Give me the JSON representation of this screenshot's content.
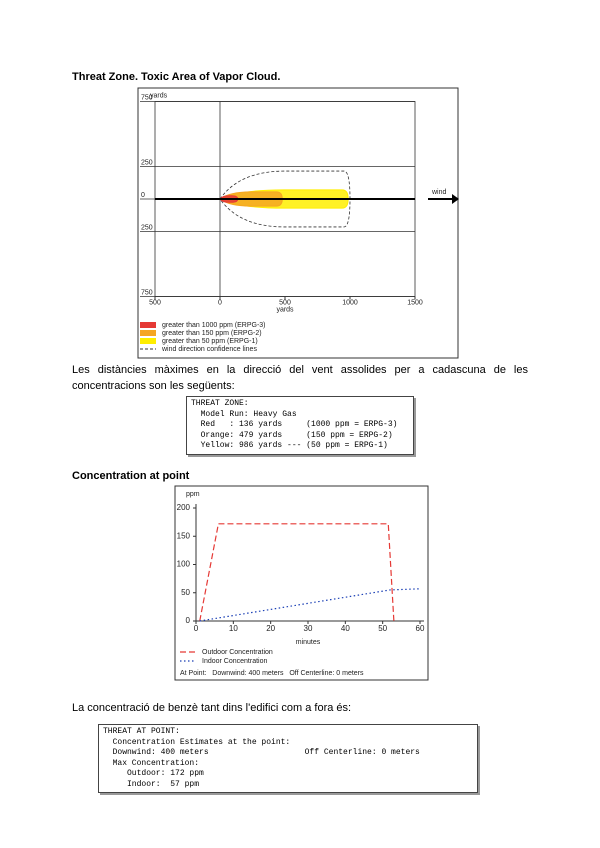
{
  "heading_1": "Threat Zone. Toxic Area of Vapor Cloud.",
  "paragraph_1": "Les distàncies màximes en la direcció del vent assolides per a cadascuna de les concentracions son les següents:",
  "box_1": [
    "THREAT ZONE:",
    "  Model Run: Heavy Gas",
    "  Red   : 136 yards     (1000 ppm = ERPG-3)",
    "  Orange: 479 yards     (150 ppm = ERPG-2)",
    "  Yellow: 986 yards --- (50 ppm = ERPG-1)"
  ],
  "heading_2": "Concentration at point",
  "paragraph_2": "La concentració de benzè tant dins l'edifici com a fora és:",
  "box_2": [
    "THREAT AT POINT:",
    "  Concentration Estimates at the point:",
    "  Downwind: 400 meters                    Off Centerline: 0 meters",
    "  Max Concentration:",
    "     Outdoor: 172 ppm",
    "     Indoor:  57 ppm"
  ],
  "chart_data": [
    {
      "type": "threat-zone",
      "y_label": "yards",
      "x_label": "yards",
      "wind_label": "wind",
      "xlim": [
        -500,
        1500
      ],
      "xticks": [
        {
          "value": -500,
          "label": "500"
        },
        0,
        500,
        1000,
        1500
      ],
      "ylim": [
        -750,
        750
      ],
      "yticks": [
        {
          "value": -750,
          "label": "750"
        },
        {
          "value": -250,
          "label": "250"
        },
        0,
        250,
        {
          "value": 750,
          "label": "750"
        }
      ],
      "confidence": {
        "name": "wind direction confidence lines",
        "extent": 1000,
        "half_width": 215
      },
      "series": [
        {
          "name": "greater than 50 ppm (ERPG-1)",
          "color": "#ffee00",
          "extent": 986,
          "half_width": 70
        },
        {
          "name": "greater than 150 ppm (ERPG-2)",
          "color": "#f5a623",
          "extent": 479,
          "half_width": 55
        },
        {
          "name": "greater than 1000 ppm (ERPG-3)",
          "color": "#e53935",
          "extent": 136,
          "half_width": 25
        }
      ]
    },
    {
      "type": "line",
      "y_label": "ppm",
      "x_label": "minutes",
      "xlim": [
        0,
        60
      ],
      "xticks": [
        0,
        10,
        20,
        30,
        40,
        50,
        60
      ],
      "ylim": [
        0,
        200
      ],
      "yticks": [
        0,
        50,
        100,
        150,
        200
      ],
      "series": [
        {
          "name": "Outdoor Concentration",
          "color": "#e53935",
          "dash": "6 3",
          "x": [
            1,
            6,
            51.5,
            53
          ],
          "values": [
            0,
            172,
            172,
            0
          ]
        },
        {
          "name": "Indoor Concentration",
          "color": "#1a3fb5",
          "dash": "1.5 2.5",
          "x": [
            1,
            52,
            60
          ],
          "values": [
            0,
            55,
            57
          ]
        }
      ],
      "note": "At Point:   Downwind: 400 meters   Off Centerline: 0 meters"
    }
  ]
}
